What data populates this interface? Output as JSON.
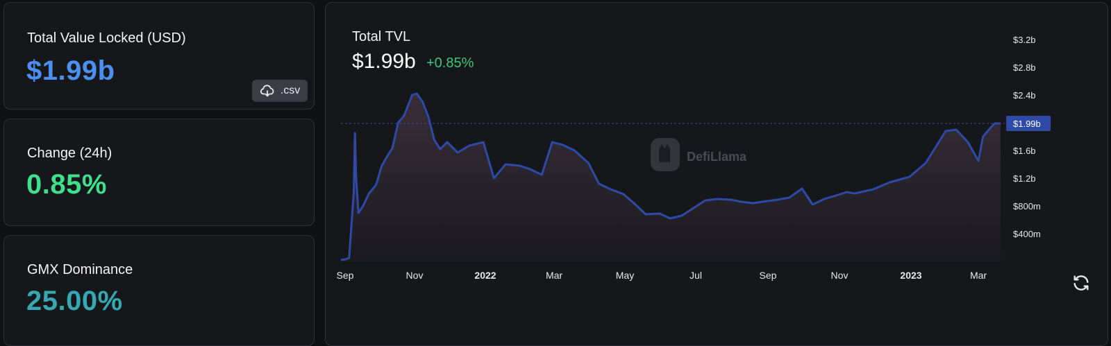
{
  "stats": {
    "tvl": {
      "label": "Total Value Locked (USD)",
      "value": "$1.99b",
      "color": "#4d8ff0"
    },
    "change": {
      "label": "Change (24h)",
      "value": "0.85%",
      "color": "#3ee08d"
    },
    "dominance": {
      "label": "GMX Dominance",
      "value": "25.00%",
      "color": "#35a8b3"
    }
  },
  "csv_button": {
    "label": ".csv",
    "icon": "cloud-download-icon"
  },
  "chart": {
    "title": "Total TVL",
    "value": "$1.99b",
    "change": "+0.85%",
    "change_color": "#3ec77a",
    "watermark": "DefiLlama",
    "refresh_icon": "refresh-icon",
    "line_color": "#2f4aa6",
    "current_label": "$1.99b",
    "current_value": 1.99
  },
  "chart_data": {
    "type": "area",
    "y_tick_labels": [
      "$400m",
      "$800m",
      "$1.2b",
      "$1.6b",
      "$2.4b",
      "$2.8b",
      "$3.2b"
    ],
    "y_tick_values": [
      0.4,
      0.8,
      1.2,
      1.6,
      2.4,
      2.8,
      3.2
    ],
    "x_tick_labels": [
      "Sep",
      "Nov",
      "2022",
      "Mar",
      "May",
      "Jul",
      "Sep",
      "Nov",
      "2023",
      "Mar"
    ],
    "x_tick_bold": [
      false,
      false,
      true,
      false,
      false,
      false,
      false,
      false,
      true,
      false
    ],
    "ylim": [
      0,
      3.2
    ],
    "x": [
      "2021-09-01",
      "2021-09-05",
      "2021-09-08",
      "2021-09-12",
      "2021-09-13",
      "2021-09-14",
      "2021-09-16",
      "2021-09-20",
      "2021-09-25",
      "2021-10-01",
      "2021-10-06",
      "2021-10-10",
      "2021-10-15",
      "2021-10-20",
      "2021-10-25",
      "2021-11-01",
      "2021-11-05",
      "2021-11-10",
      "2021-11-15",
      "2021-11-20",
      "2021-11-25",
      "2021-12-01",
      "2021-12-10",
      "2021-12-20",
      "2022-01-01",
      "2022-01-10",
      "2022-01-20",
      "2022-02-01",
      "2022-02-10",
      "2022-02-20",
      "2022-03-01",
      "2022-03-10",
      "2022-03-20",
      "2022-04-01",
      "2022-04-10",
      "2022-04-20",
      "2022-05-01",
      "2022-05-10",
      "2022-05-20",
      "2022-06-01",
      "2022-06-10",
      "2022-06-20",
      "2022-07-01",
      "2022-07-10",
      "2022-07-20",
      "2022-08-01",
      "2022-08-10",
      "2022-08-20",
      "2022-09-01",
      "2022-09-10",
      "2022-09-20",
      "2022-10-01",
      "2022-10-10",
      "2022-10-20",
      "2022-11-01",
      "2022-11-08",
      "2022-11-15",
      "2022-12-01",
      "2022-12-15",
      "2023-01-01",
      "2023-01-15",
      "2023-02-01",
      "2023-02-10",
      "2023-02-20",
      "2023-03-01",
      "2023-03-05",
      "2023-03-10",
      "2023-03-15",
      "2023-03-20"
    ],
    "values": [
      0.02,
      0.03,
      0.05,
      1.0,
      1.85,
      1.2,
      0.7,
      0.8,
      0.98,
      1.1,
      1.38,
      1.5,
      1.63,
      2.0,
      2.1,
      2.4,
      2.42,
      2.3,
      2.08,
      1.75,
      1.62,
      1.72,
      1.57,
      1.67,
      1.72,
      1.2,
      1.4,
      1.38,
      1.33,
      1.25,
      1.72,
      1.68,
      1.6,
      1.42,
      1.12,
      1.04,
      0.97,
      0.84,
      0.68,
      0.69,
      0.62,
      0.66,
      0.78,
      0.88,
      0.9,
      0.89,
      0.86,
      0.84,
      0.87,
      0.89,
      0.92,
      1.05,
      0.82,
      0.9,
      0.96,
      1.0,
      0.98,
      1.04,
      1.14,
      1.22,
      1.42,
      1.88,
      1.9,
      1.72,
      1.45,
      1.8,
      1.9,
      1.99,
      1.99
    ]
  }
}
